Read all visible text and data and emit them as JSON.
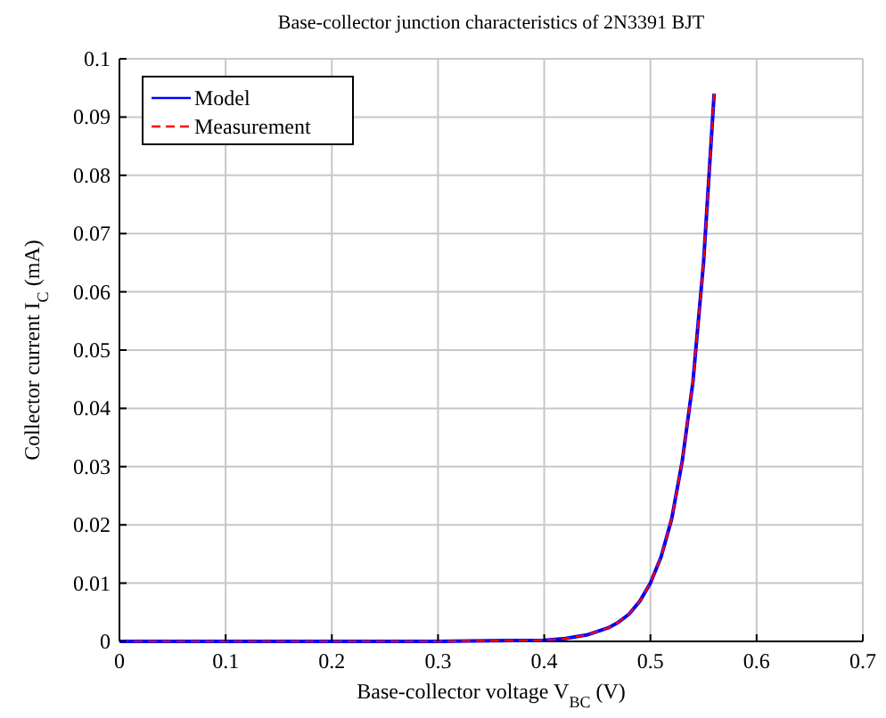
{
  "chart_data": {
    "type": "line",
    "title": "Base-collector junction characteristics of 2N3391 BJT",
    "xlabel": "Base-collector voltage V$_{BC}$ (V)",
    "ylabel": "Collector current I$_{C}$ (mA)",
    "x": [
      0,
      0.1,
      0.2,
      0.3,
      0.35,
      0.4,
      0.42,
      0.44,
      0.46,
      0.47,
      0.48,
      0.49,
      0.5,
      0.51,
      0.52,
      0.53,
      0.54,
      0.55,
      0.56
    ],
    "series": [
      {
        "name": "Model",
        "color": "#0000ff",
        "line_style": "solid",
        "values": [
          0,
          0,
          0,
          0,
          0.0001,
          0.0002,
          0.0005,
          0.0011,
          0.0023,
          0.0033,
          0.0047,
          0.0069,
          0.01,
          0.0145,
          0.021,
          0.031,
          0.0445,
          0.065,
          0.094
        ]
      },
      {
        "name": "Measurement",
        "color": "#ff0000",
        "line_style": "dashed",
        "values": [
          0,
          0,
          0,
          0,
          0.0001,
          0.0002,
          0.0005,
          0.0011,
          0.0023,
          0.0033,
          0.0047,
          0.0069,
          0.01,
          0.0145,
          0.021,
          0.031,
          0.0445,
          0.065,
          0.094
        ]
      }
    ],
    "xlim": [
      0,
      0.7
    ],
    "xticks": [
      0,
      0.1,
      0.2,
      0.3,
      0.4,
      0.5,
      0.6,
      0.7
    ],
    "ylim": [
      0,
      0.1
    ],
    "yticks": [
      0,
      0.01,
      0.02,
      0.03,
      0.04,
      0.05,
      0.06,
      0.07,
      0.08,
      0.09,
      0.1
    ],
    "grid": true,
    "legend": "top left"
  }
}
